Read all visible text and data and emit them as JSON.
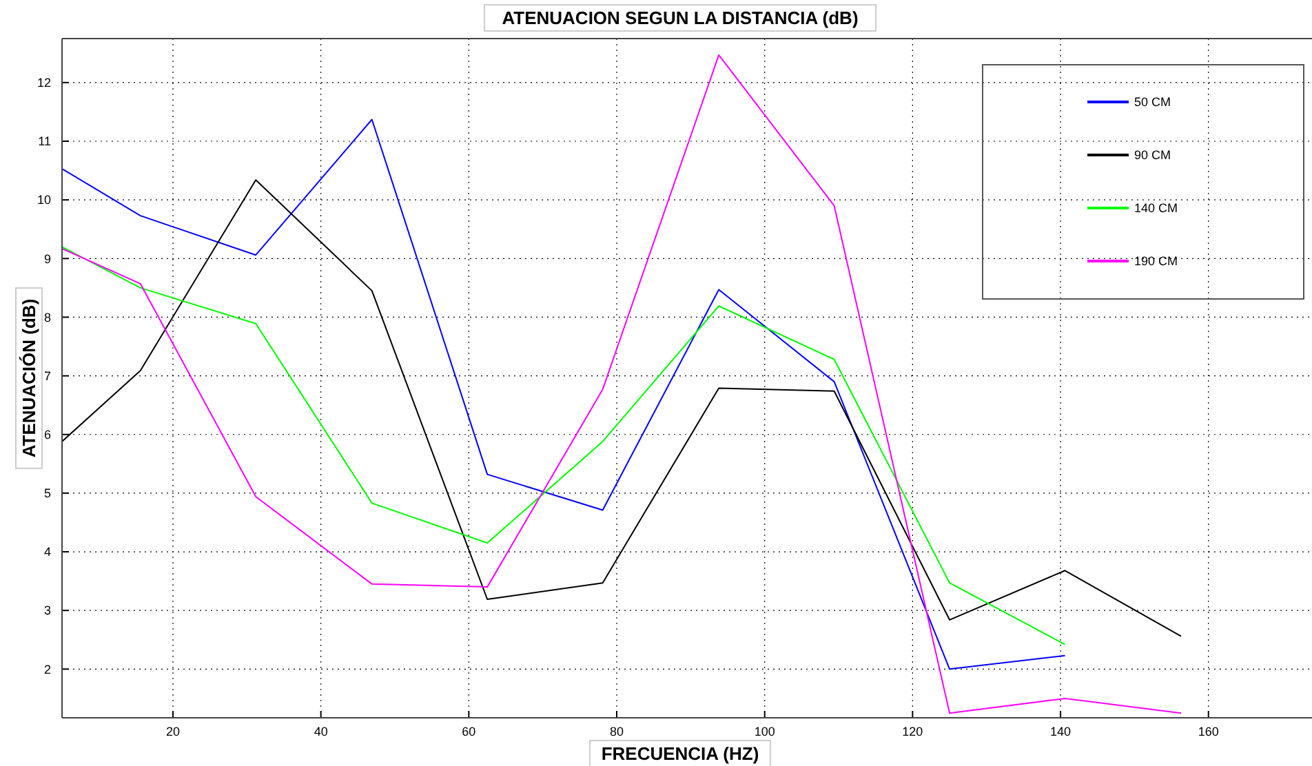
{
  "chart_data": {
    "type": "line",
    "title": "ATENUACION SEGUN LA DISTANCIA (dB)",
    "xlabel": "FRECUENCIA (HZ)",
    "ylabel": "ATENUACIÓN (dB)",
    "x": [
      5,
      15.6,
      31.2,
      46.9,
      62.5,
      78.1,
      93.8,
      109.4,
      125,
      140.6,
      156.3
    ],
    "xlim": [
      5,
      174
    ],
    "xticks": [
      20,
      40,
      60,
      80,
      100,
      120,
      140,
      160
    ],
    "ylim": [
      1.17,
      12.75
    ],
    "yticks": [
      2,
      3,
      4,
      5,
      6,
      7,
      8,
      9,
      10,
      11,
      12
    ],
    "grid": true,
    "legend": "top right",
    "marker": "none",
    "line_style": "solid",
    "series": [
      {
        "name": "50 CM",
        "color": "#0000ff",
        "values": [
          10.53,
          9.73,
          9.06,
          11.37,
          5.32,
          4.71,
          8.47,
          6.9,
          2.0,
          2.23,
          null
        ]
      },
      {
        "name": "90 CM",
        "color": "#000000",
        "values": [
          5.88,
          7.09,
          10.34,
          8.45,
          3.19,
          3.47,
          6.79,
          6.74,
          2.84,
          3.68,
          2.56
        ]
      },
      {
        "name": "140 CM",
        "color": "#00ff00",
        "values": [
          9.2,
          8.5,
          7.89,
          4.83,
          4.15,
          5.88,
          8.19,
          7.28,
          3.47,
          2.42,
          null
        ]
      },
      {
        "name": "190 CM",
        "color": "#ff00ff",
        "values": [
          9.17,
          8.57,
          4.94,
          3.45,
          3.4,
          6.77,
          12.47,
          9.9,
          1.25,
          1.5,
          1.25
        ]
      }
    ]
  }
}
